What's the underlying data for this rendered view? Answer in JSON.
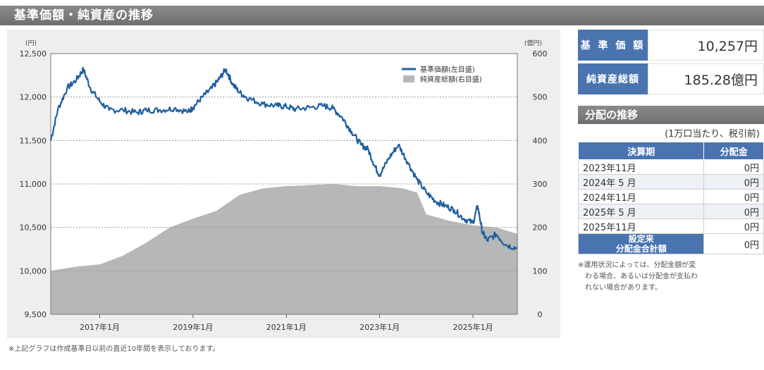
{
  "page": {
    "title": "基準価額・純資産の推移"
  },
  "chart_data": {
    "type": "line",
    "title": "",
    "left_axis": {
      "unit": "(円)",
      "min": 9500,
      "max": 12500,
      "ticks": [
        "9,500",
        "10,000",
        "10,500",
        "11,000",
        "11,500",
        "12,000",
        "12,500"
      ],
      "tick_values": [
        9500,
        10000,
        10500,
        11000,
        11500,
        12000,
        12500
      ]
    },
    "right_axis": {
      "unit": "(億円)",
      "min": 0,
      "max": 600,
      "ticks": [
        "0",
        "100",
        "200",
        "300",
        "400",
        "500",
        "600"
      ],
      "tick_values": [
        0,
        100,
        200,
        300,
        400,
        500,
        600
      ]
    },
    "x_axis": {
      "start": 2015.95,
      "end": 2025.95,
      "ticks": [
        "2017年1月",
        "2019年1月",
        "2021年1月",
        "2023年1月",
        "2025年1月"
      ],
      "tick_positions": [
        2017.0,
        2019.0,
        2021.0,
        2023.0,
        2025.0
      ]
    },
    "legend": {
      "position": "top-right",
      "items": [
        "基準価額(左目盛)",
        "純資産総額(右目盛)"
      ]
    },
    "colors": {
      "nav_line": "#1f5f9f",
      "area": "#b7b7b7",
      "grid": "#9a9a9a"
    },
    "series": [
      {
        "name": "基準価額(左目盛)",
        "axis": "left",
        "type": "line",
        "x": [
          2015.95,
          2016.1,
          2016.3,
          2016.5,
          2016.65,
          2016.8,
          2017.0,
          2017.2,
          2017.5,
          2017.8,
          2018.0,
          2018.3,
          2018.6,
          2018.9,
          2019.0,
          2019.2,
          2019.4,
          2019.55,
          2019.7,
          2019.85,
          2020.0,
          2020.2,
          2020.5,
          2020.8,
          2021.0,
          2021.2,
          2021.5,
          2021.8,
          2022.0,
          2022.2,
          2022.4,
          2022.6,
          2022.75,
          2022.9,
          2023.0,
          2023.2,
          2023.4,
          2023.6,
          2023.8,
          2024.0,
          2024.2,
          2024.4,
          2024.6,
          2024.8,
          2025.0,
          2025.1,
          2025.2,
          2025.3,
          2025.5,
          2025.7,
          2025.95
        ],
        "y": [
          11500,
          11850,
          12100,
          12200,
          12320,
          12100,
          11950,
          11850,
          11850,
          11820,
          11850,
          11850,
          11870,
          11830,
          11880,
          12000,
          12100,
          12200,
          12320,
          12150,
          12050,
          11980,
          11920,
          11900,
          11890,
          11860,
          11880,
          11900,
          11870,
          11760,
          11600,
          11450,
          11400,
          11200,
          11100,
          11300,
          11450,
          11250,
          11050,
          10900,
          10800,
          10750,
          10700,
          10600,
          10550,
          10750,
          10450,
          10350,
          10420,
          10300,
          10260
        ]
      },
      {
        "name": "純資産総額(右目盛)",
        "axis": "right",
        "type": "area",
        "x": [
          2015.95,
          2016.5,
          2017.0,
          2017.5,
          2018.0,
          2018.5,
          2019.0,
          2019.5,
          2020.0,
          2020.5,
          2021.0,
          2021.5,
          2022.0,
          2022.5,
          2023.0,
          2023.5,
          2023.8,
          2024.0,
          2024.5,
          2025.0,
          2025.5,
          2025.95
        ],
        "y": [
          100,
          110,
          115,
          135,
          165,
          200,
          220,
          238,
          275,
          290,
          295,
          297,
          300,
          295,
          295,
          290,
          280,
          230,
          215,
          205,
          200,
          185
        ]
      }
    ]
  },
  "summary": [
    {
      "label": "基 準 価 額",
      "value": "10,257円"
    },
    {
      "label": "純資産総額",
      "value": "185.28億円"
    }
  ],
  "distribution": {
    "title": "分配の推移",
    "note": "(1万口当たり、税引前)",
    "headers": [
      "決算期",
      "分配金"
    ],
    "rows": [
      {
        "period": "2023年11月",
        "amount": "0円"
      },
      {
        "period": "2024年 5 月",
        "amount": "0円"
      },
      {
        "period": "2024年11月",
        "amount": "0円"
      },
      {
        "period": "2025年 5 月",
        "amount": "0円"
      },
      {
        "period": "2025年11月",
        "amount": "0円"
      }
    ],
    "total_label_1": "設定来",
    "total_label_2": "分配金合計額",
    "total_amount": "0円",
    "footnote_1": "※運用状況によっては、分配金額が変",
    "footnote_2": "わる場合、あるいは分配金が支払わ",
    "footnote_3": "れない場合があります。"
  },
  "footnote": "※上記グラフは作成基準日以前の直近10年間を表示しております。"
}
